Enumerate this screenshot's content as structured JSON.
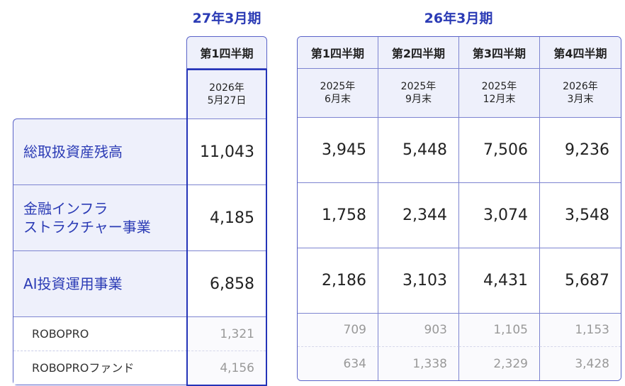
{
  "titles": {
    "fy27": "27年3月期",
    "fy26": "26年3月期"
  },
  "rows": [
    {
      "label": "総取扱資産残高"
    },
    {
      "label": "金融インフラ\nストラクチャー事業"
    },
    {
      "label": "AI投資運用事業"
    },
    {
      "label": "ROBOPRO"
    },
    {
      "label": "ROBOPROファンド"
    }
  ],
  "fy27": {
    "header": "第1四半期",
    "date_line1": "2026年",
    "date_line2": "5月27日",
    "values": [
      "11,043",
      "4,185",
      "6,858",
      "1,321",
      "4,156"
    ]
  },
  "fy26": [
    {
      "header": "第1四半期",
      "date_line1": "2025年",
      "date_line2": "6月末",
      "values": [
        "3,945",
        "1,758",
        "2,186",
        "709",
        "634"
      ]
    },
    {
      "header": "第2四半期",
      "date_line1": "2025年",
      "date_line2": "9月末",
      "values": [
        "5,448",
        "2,344",
        "3,103",
        "903",
        "1,338"
      ]
    },
    {
      "header": "第3四半期",
      "date_line1": "2025年",
      "date_line2": "12月末",
      "values": [
        "7,506",
        "3,074",
        "4,431",
        "1,105",
        "2,329"
      ]
    },
    {
      "header": "第4四半期",
      "date_line1": "2026年",
      "date_line2": "3月末",
      "values": [
        "9,236",
        "3,548",
        "5,687",
        "1,153",
        "3,428"
      ]
    }
  ],
  "colors": {
    "accent": "#2b3bb5",
    "header_bg": "#eef0fb",
    "sub_text": "#999999"
  }
}
